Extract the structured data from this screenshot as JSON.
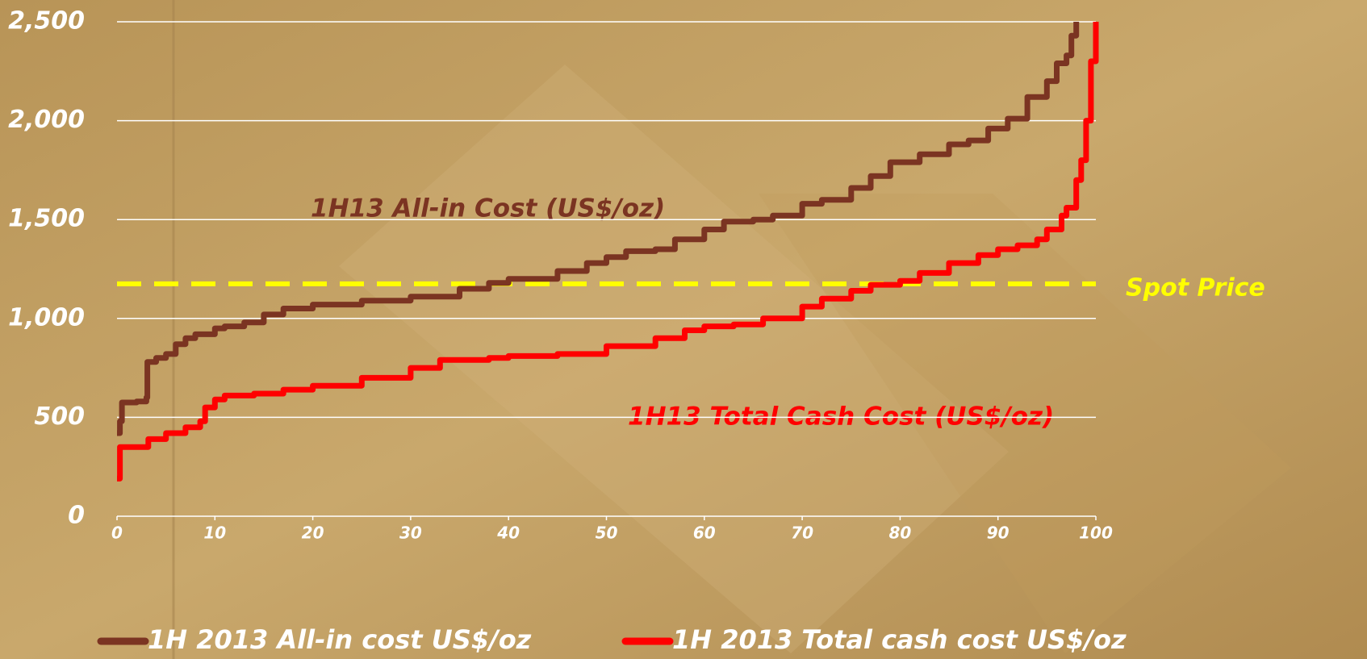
{
  "chart_data": {
    "type": "line",
    "series": [
      {
        "name": "1H 2013 All-in cost US$/oz",
        "color": "#7b3422",
        "x": [
          0,
          0.3,
          0.5,
          2,
          3,
          3.1,
          4,
          5,
          6,
          7,
          8,
          10,
          11,
          13,
          15,
          17,
          20,
          25,
          30,
          35,
          38,
          40,
          45,
          48,
          50,
          52,
          55,
          57,
          60,
          62,
          65,
          67,
          70,
          72,
          75,
          77,
          79,
          82,
          85,
          87,
          89,
          91,
          93,
          95,
          96,
          97,
          97.5,
          98
        ],
        "values": [
          420,
          480,
          575,
          580,
          600,
          780,
          800,
          820,
          870,
          900,
          920,
          950,
          960,
          980,
          1020,
          1050,
          1070,
          1090,
          1110,
          1150,
          1180,
          1200,
          1240,
          1280,
          1310,
          1340,
          1350,
          1400,
          1450,
          1490,
          1500,
          1520,
          1580,
          1600,
          1660,
          1720,
          1790,
          1830,
          1880,
          1900,
          1960,
          2010,
          2120,
          2200,
          2290,
          2330,
          2430,
          2500
        ]
      },
      {
        "name": "1H 2013 Total cash cost US$/oz",
        "color": "#ff0000",
        "x": [
          0,
          0.3,
          3,
          3.2,
          5,
          7,
          8.5,
          9,
          10,
          11,
          14,
          17,
          20,
          25,
          30,
          33,
          38,
          40,
          45,
          50,
          55,
          58,
          60,
          63,
          66,
          70,
          72,
          75,
          77,
          80,
          82,
          85,
          88,
          90,
          92,
          94,
          95,
          96.5,
          97,
          98,
          98.5,
          99,
          99.5,
          100
        ],
        "values": [
          190,
          350,
          350,
          390,
          420,
          450,
          480,
          550,
          590,
          610,
          620,
          640,
          660,
          700,
          750,
          790,
          800,
          810,
          820,
          860,
          900,
          940,
          960,
          970,
          1000,
          1060,
          1100,
          1140,
          1170,
          1190,
          1230,
          1280,
          1320,
          1350,
          1370,
          1400,
          1450,
          1520,
          1560,
          1700,
          1800,
          2000,
          2300,
          2500
        ]
      }
    ],
    "spot_price": {
      "value": 1175,
      "label": "Spot Price",
      "color": "#ffff00"
    },
    "annotations": [
      {
        "text": "1H13 All-in Cost (US$/oz)",
        "color": "#7b3422"
      },
      {
        "text": "1H13 Total Cash Cost (US$/oz)",
        "color": "#ff0000"
      }
    ],
    "xlim": [
      0,
      100
    ],
    "xticks": [
      0,
      10,
      20,
      30,
      40,
      50,
      60,
      70,
      80,
      90,
      100
    ],
    "ylim": [
      0,
      2500
    ],
    "yticks": [
      0,
      500,
      {
        "value": 1000,
        "label": "1,000"
      },
      {
        "value": 1500,
        "label": "1,500"
      },
      {
        "value": 2000,
        "label": "2,000"
      },
      {
        "value": 2500,
        "label": "2,500"
      }
    ],
    "grid": true
  }
}
